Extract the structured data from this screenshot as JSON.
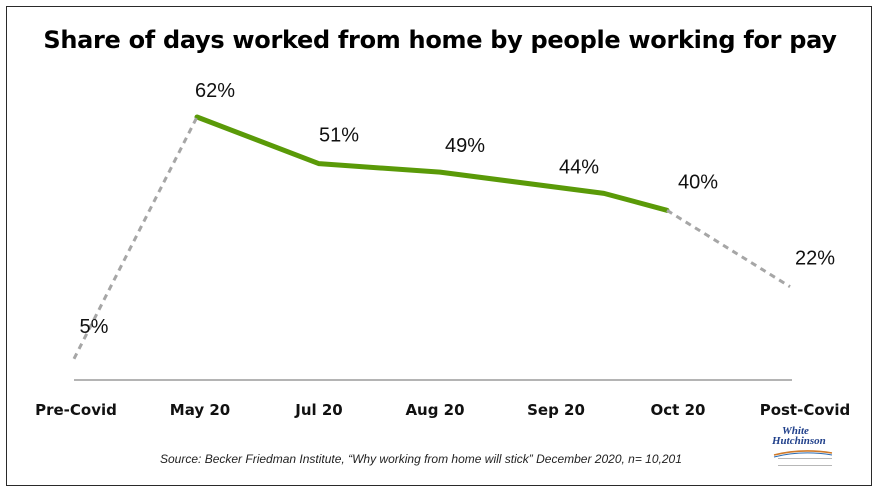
{
  "chart_data": {
    "type": "line",
    "title": "Share of days worked from home by people working for pay",
    "xlabel": "",
    "ylabel": "",
    "categories": [
      "Pre-Covid",
      "May 20",
      "Jul 20",
      "Aug 20",
      "Sep 20",
      "Oct 20",
      "Post-Covid"
    ],
    "values": [
      5,
      62,
      51,
      49,
      44,
      40,
      22
    ],
    "data_labels": [
      "5%",
      "62%",
      "51%",
      "49%",
      "44%",
      "40%",
      "22%"
    ],
    "series": [
      {
        "values": [
          null,
          62,
          51,
          49,
          44,
          40,
          null
        ],
        "style": "solid",
        "color": "#5a9a08"
      },
      {
        "values": [
          5,
          62,
          null,
          null,
          null,
          40,
          22
        ],
        "style": "dashed",
        "color": "#a6a6a6"
      }
    ],
    "ylim": [
      0,
      70
    ],
    "grid": false,
    "legend": "none"
  },
  "source": "Source: Becker Friedman Institute, “Why working from home will stick” December 2020, n= 10,201",
  "logo": {
    "line1": "White",
    "line2": "Hutchinson"
  },
  "colors": {
    "solid_line": "#5a9a08",
    "dashed_line": "#a6a6a6",
    "axis": "#888888",
    "logo": "#1f3f8a"
  }
}
